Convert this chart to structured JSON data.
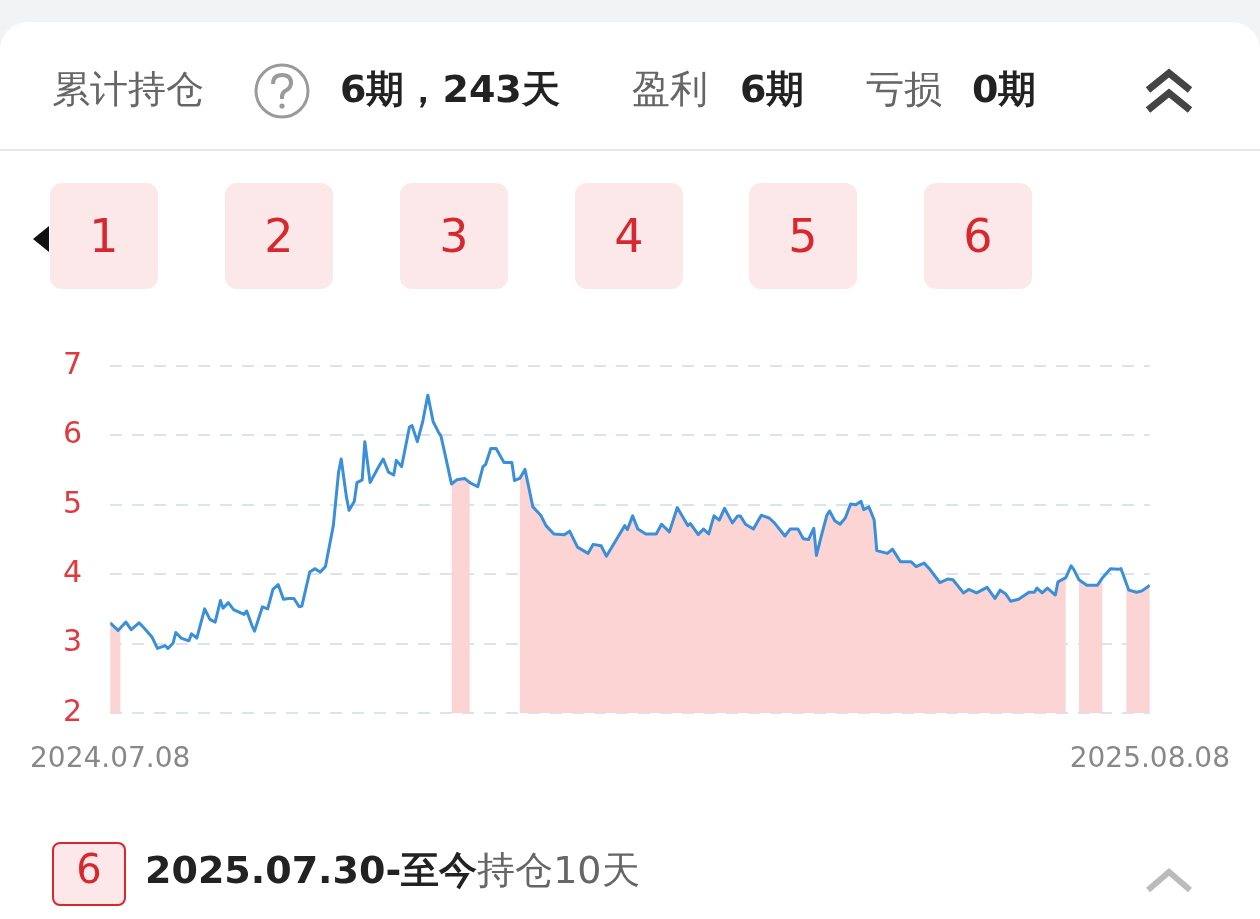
{
  "chart_data": {
    "type": "line",
    "annotations": [
      "累计持仓",
      "6期，243天",
      "盈利",
      "6期",
      "亏损",
      "0期",
      "1",
      "2",
      "3",
      "4",
      "5",
      "6",
      "6",
      "2025.07.30-至今",
      "持仓10天"
    ],
    "x": [
      "2024-07-08",
      "2024-07-11",
      "2024-07-14",
      "2024-07-16",
      "2024-07-19",
      "2024-07-21",
      "2024-07-24",
      "2024-07-26",
      "2024-07-29",
      "2024-07-30",
      "2024-08-01",
      "2024-08-02",
      "2024-08-04",
      "2024-08-07",
      "2024-08-08",
      "2024-08-10",
      "2024-08-13",
      "2024-08-15",
      "2024-08-17",
      "2024-08-19",
      "2024-08-20",
      "2024-08-22",
      "2024-08-24",
      "2024-08-28",
      "2024-08-29",
      "2024-08-31",
      "2024-09-01",
      "2024-09-04",
      "2024-09-06",
      "2024-09-08",
      "2024-09-10",
      "2024-09-12",
      "2024-09-14",
      "2024-09-16",
      "2024-09-18",
      "2024-09-19",
      "2024-09-22",
      "2024-09-24",
      "2024-09-26",
      "2024-09-28",
      "2024-10-01",
      "2024-10-03",
      "2024-10-04",
      "2024-10-06",
      "2024-10-07",
      "2024-10-09",
      "2024-10-10",
      "2024-10-12",
      "2024-10-13",
      "2024-10-15",
      "2024-10-18",
      "2024-10-20",
      "2024-10-22",
      "2024-10-24",
      "2024-10-25",
      "2024-10-27",
      "2024-10-30",
      "2024-10-31",
      "2024-11-02",
      "2024-11-04",
      "2024-11-06",
      "2024-11-08",
      "2024-11-10",
      "2024-11-11",
      "2024-11-13",
      "2024-11-15",
      "2024-11-17",
      "2024-11-20",
      "2024-11-22",
      "2024-11-25",
      "2024-11-27",
      "2024-11-28",
      "2024-11-30",
      "2024-12-02",
      "2024-12-05",
      "2024-12-08",
      "2024-12-09",
      "2024-12-11",
      "2024-12-13",
      "2024-12-16",
      "2024-12-19",
      "2024-12-21",
      "2024-12-24",
      "2024-12-28",
      "2024-12-30",
      "2025-01-02",
      "2025-01-06",
      "2025-01-08",
      "2025-01-11",
      "2025-01-13",
      "2025-01-17",
      "2025-01-20",
      "2025-01-21",
      "2025-01-23",
      "2025-01-25",
      "2025-01-28",
      "2025-02-01",
      "2025-02-03",
      "2025-02-06",
      "2025-02-09",
      "2025-02-13",
      "2025-02-14",
      "2025-02-17",
      "2025-02-19",
      "2025-02-21",
      "2025-02-23",
      "2025-02-25",
      "2025-02-27",
      "2025-03-02",
      "2025-03-04",
      "2025-03-05",
      "2025-03-07",
      "2025-03-10",
      "2025-03-13",
      "2025-03-16",
      "2025-03-18",
      "2025-03-22",
      "2025-03-24",
      "2025-03-27",
      "2025-03-29",
      "2025-03-31",
      "2025-04-02",
      "2025-04-03",
      "2025-04-05",
      "2025-04-07",
      "2025-04-08",
      "2025-04-10",
      "2025-04-12",
      "2025-04-14",
      "2025-04-16",
      "2025-04-18",
      "2025-04-20",
      "2025-04-21",
      "2025-04-23",
      "2025-04-25",
      "2025-04-26",
      "2025-04-30",
      "2025-05-02",
      "2025-05-03",
      "2025-05-05",
      "2025-05-09",
      "2025-05-11",
      "2025-05-14",
      "2025-05-16",
      "2025-05-20",
      "2025-05-23",
      "2025-05-25",
      "2025-05-29",
      "2025-05-31",
      "2025-06-03",
      "2025-06-07",
      "2025-06-10",
      "2025-06-12",
      "2025-06-14",
      "2025-06-16",
      "2025-06-19",
      "2025-06-23",
      "2025-06-25",
      "2025-06-26",
      "2025-06-28",
      "2025-06-30",
      "2025-07-03",
      "2025-07-04",
      "2025-07-07",
      "2025-07-09",
      "2025-07-10",
      "2025-07-12",
      "2025-07-15",
      "2025-07-19",
      "2025-07-21",
      "2025-07-24",
      "2025-07-27",
      "2025-07-28",
      "2025-07-31",
      "2025-08-03",
      "2025-08-05",
      "2025-08-08"
    ],
    "series": [
      {
        "type": "area",
        "color": "#fdd4d4",
        "x": [
          "2024-07-08",
          "2024-07-11",
          "2024-07-12",
          "2024-11-13",
          "2024-11-15",
          "2024-11-17",
          "2024-11-20",
          "2024-11-22",
          "2024-12-01",
          "2024-12-11",
          "2024-12-13",
          "2024-12-16",
          "2024-12-19",
          "2024-12-21",
          "2024-12-24",
          "2024-12-28",
          "2024-12-30",
          "2025-01-02",
          "2025-01-06",
          "2025-01-08",
          "2025-01-11",
          "2025-01-13",
          "2025-01-17",
          "2025-01-20",
          "2025-01-21",
          "2025-01-23",
          "2025-01-25",
          "2025-01-28",
          "2025-02-01",
          "2025-02-03",
          "2025-02-06",
          "2025-02-09",
          "2025-02-13",
          "2025-02-14",
          "2025-02-17",
          "2025-02-19",
          "2025-02-21",
          "2025-02-23",
          "2025-02-25",
          "2025-02-27",
          "2025-03-02",
          "2025-03-04",
          "2025-03-05",
          "2025-03-07",
          "2025-03-10",
          "2025-03-13",
          "2025-03-16",
          "2025-03-18",
          "2025-03-22",
          "2025-03-24",
          "2025-03-27",
          "2025-03-29",
          "2025-03-31",
          "2025-04-02",
          "2025-04-03",
          "2025-04-05",
          "2025-04-07",
          "2025-04-08",
          "2025-04-10",
          "2025-04-12",
          "2025-04-14",
          "2025-04-16",
          "2025-04-18",
          "2025-04-20",
          "2025-04-21",
          "2025-04-23",
          "2025-04-25",
          "2025-04-26",
          "2025-04-30",
          "2025-05-02",
          "2025-05-03",
          "2025-05-05",
          "2025-05-09",
          "2025-05-11",
          "2025-05-14",
          "2025-05-16",
          "2025-05-20",
          "2025-05-23",
          "2025-05-25",
          "2025-05-29",
          "2025-05-31",
          "2025-06-03",
          "2025-06-07",
          "2025-06-10",
          "2025-06-12",
          "2025-06-14",
          "2025-06-16",
          "2025-06-19",
          "2025-06-23",
          "2025-06-25",
          "2025-06-26",
          "2025-06-28",
          "2025-06-30",
          "2025-07-03",
          "2025-07-04",
          "2025-07-07",
          "2025-07-09",
          "2025-07-12",
          "2025-07-15",
          "2025-07-19",
          "2025-07-21",
          "2025-07-25",
          "2025-07-30",
          "2025-07-31",
          "2025-08-03",
          "2025-08-05",
          "2025-08-08"
        ],
        "values": [
          3.3,
          3.19,
          3.23,
          null,
          5.3,
          5.36,
          5.38,
          5.32,
          null,
          5.38,
          5.51,
          4.97,
          4.85,
          4.7,
          4.58,
          4.57,
          4.62,
          4.39,
          4.3,
          4.43,
          4.41,
          4.26,
          4.51,
          4.7,
          4.64,
          4.84,
          4.65,
          4.58,
          4.58,
          4.72,
          4.61,
          4.96,
          4.7,
          4.73,
          4.57,
          4.65,
          4.58,
          4.84,
          4.78,
          4.95,
          4.74,
          4.84,
          4.84,
          4.72,
          4.65,
          4.85,
          4.81,
          4.74,
          4.55,
          4.65,
          4.65,
          4.51,
          4.5,
          4.66,
          4.27,
          4.57,
          4.85,
          4.91,
          4.77,
          4.72,
          4.81,
          5.01,
          5.0,
          5.05,
          4.93,
          4.97,
          4.78,
          4.34,
          4.3,
          4.36,
          4.3,
          4.18,
          4.18,
          4.11,
          4.16,
          4.08,
          3.88,
          3.93,
          3.92,
          3.73,
          3.78,
          3.73,
          3.81,
          3.65,
          3.77,
          3.72,
          3.61,
          3.64,
          3.74,
          3.74,
          3.8,
          3.73,
          3.8,
          3.7,
          3.89,
          3.95,
          null,
          3.92,
          3.84,
          3.84,
          3.95,
          null,
          3.8,
          3.77,
          3.74,
          3.76,
          3.84
        ]
      },
      {
        "color": "#3a8fd9",
        "values": [
          3.3,
          3.19,
          3.31,
          3.2,
          3.3,
          3.22,
          3.09,
          2.93,
          2.97,
          2.93,
          3.01,
          3.16,
          3.08,
          3.04,
          3.14,
          3.08,
          3.5,
          3.35,
          3.31,
          3.62,
          3.51,
          3.59,
          3.49,
          3.42,
          3.47,
          3.26,
          3.18,
          3.53,
          3.5,
          3.78,
          3.85,
          3.64,
          3.65,
          3.65,
          3.53,
          3.54,
          4.03,
          4.08,
          4.03,
          4.11,
          4.7,
          5.47,
          5.66,
          5.11,
          4.92,
          5.05,
          5.32,
          5.36,
          5.91,
          5.32,
          5.53,
          5.66,
          5.47,
          5.43,
          5.64,
          5.55,
          6.12,
          6.14,
          5.91,
          6.19,
          6.58,
          6.2,
          6.05,
          5.99,
          5.65,
          5.3,
          5.36,
          5.38,
          5.32,
          5.26,
          5.55,
          5.58,
          5.81,
          5.81,
          5.61,
          5.61,
          5.35,
          5.38,
          5.51,
          4.97,
          4.85,
          4.7,
          4.58,
          4.57,
          4.62,
          4.39,
          4.3,
          4.43,
          4.41,
          4.26,
          4.51,
          4.7,
          4.64,
          4.84,
          4.65,
          4.58,
          4.58,
          4.72,
          4.61,
          4.96,
          4.7,
          4.73,
          4.57,
          4.65,
          4.58,
          4.84,
          4.78,
          4.95,
          4.74,
          4.84,
          4.84,
          4.72,
          4.65,
          4.85,
          4.81,
          4.74,
          4.55,
          4.65,
          4.65,
          4.51,
          4.5,
          4.66,
          4.27,
          4.57,
          4.85,
          4.91,
          4.77,
          4.72,
          4.81,
          5.01,
          5.0,
          5.05,
          4.93,
          4.97,
          4.78,
          4.34,
          4.3,
          4.36,
          4.3,
          4.18,
          4.18,
          4.11,
          4.16,
          4.08,
          3.88,
          3.93,
          3.92,
          3.73,
          3.78,
          3.73,
          3.81,
          3.65,
          3.77,
          3.72,
          3.61,
          3.64,
          3.74,
          3.74,
          3.8,
          3.73,
          3.8,
          3.7,
          3.89,
          3.95,
          4.12,
          4.07,
          3.92,
          3.84,
          3.84,
          3.95,
          4.08,
          4.07,
          4.08,
          3.77,
          3.74,
          3.76,
          3.84
        ]
      }
    ],
    "xlim": [
      "2024-07-08",
      "2025-08-08"
    ],
    "xticks": [
      {
        "value": "2024-07-08",
        "label": "2024.07.08"
      },
      {
        "value": "2025-08-08",
        "label": "2025.08.08"
      }
    ],
    "ylim": [
      2,
      7
    ],
    "yticks": [
      2,
      3,
      4,
      5,
      6,
      7
    ],
    "grid": "y",
    "marker": "none",
    "line_style": "solid"
  }
}
